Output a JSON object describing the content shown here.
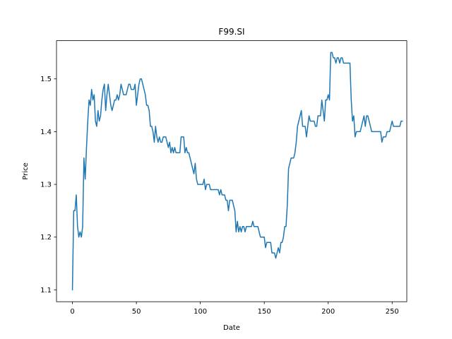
{
  "chart_data": {
    "type": "line",
    "title": "F99.SI",
    "xlabel": "Date",
    "ylabel": "Price",
    "xlim": [
      -12.45,
      261.45
    ],
    "ylim": [
      1.0775,
      1.5725
    ],
    "xticks": [
      0,
      50,
      100,
      150,
      200,
      250
    ],
    "yticks": [
      1.1,
      1.2,
      1.3,
      1.4,
      1.5
    ],
    "xtick_labels": [
      "0",
      "50",
      "100",
      "150",
      "200",
      "250"
    ],
    "ytick_labels": [
      "1.1",
      "1.2",
      "1.3",
      "1.4",
      "1.5"
    ],
    "grid": false,
    "colors": {
      "line": "#1f77b4",
      "axes": "#000000",
      "background": "#ffffff"
    },
    "series": [
      {
        "values": [
          1.1,
          1.25,
          1.25,
          1.28,
          1.22,
          1.2,
          1.21,
          1.2,
          1.22,
          1.35,
          1.31,
          1.37,
          1.42,
          1.46,
          1.45,
          1.48,
          1.46,
          1.47,
          1.42,
          1.41,
          1.44,
          1.42,
          1.43,
          1.46,
          1.48,
          1.49,
          1.44,
          1.47,
          1.49,
          1.47,
          1.45,
          1.44,
          1.45,
          1.46,
          1.46,
          1.47,
          1.46,
          1.47,
          1.49,
          1.48,
          1.47,
          1.47,
          1.47,
          1.48,
          1.49,
          1.49,
          1.48,
          1.48,
          1.48,
          1.49,
          1.45,
          1.47,
          1.49,
          1.5,
          1.5,
          1.49,
          1.48,
          1.47,
          1.45,
          1.45,
          1.44,
          1.41,
          1.41,
          1.4,
          1.38,
          1.41,
          1.39,
          1.38,
          1.39,
          1.38,
          1.38,
          1.39,
          1.39,
          1.39,
          1.38,
          1.37,
          1.38,
          1.36,
          1.37,
          1.36,
          1.37,
          1.36,
          1.36,
          1.36,
          1.36,
          1.39,
          1.39,
          1.39,
          1.36,
          1.37,
          1.36,
          1.36,
          1.35,
          1.34,
          1.33,
          1.32,
          1.34,
          1.31,
          1.3,
          1.3,
          1.3,
          1.3,
          1.3,
          1.31,
          1.29,
          1.3,
          1.3,
          1.3,
          1.29,
          1.29,
          1.29,
          1.29,
          1.29,
          1.29,
          1.29,
          1.28,
          1.29,
          1.28,
          1.28,
          1.28,
          1.27,
          1.27,
          1.25,
          1.27,
          1.27,
          1.27,
          1.26,
          1.25,
          1.21,
          1.23,
          1.21,
          1.22,
          1.21,
          1.22,
          1.22,
          1.21,
          1.22,
          1.22,
          1.22,
          1.22,
          1.22,
          1.23,
          1.22,
          1.22,
          1.22,
          1.22,
          1.21,
          1.2,
          1.2,
          1.2,
          1.2,
          1.18,
          1.19,
          1.19,
          1.19,
          1.19,
          1.17,
          1.17,
          1.17,
          1.16,
          1.17,
          1.18,
          1.17,
          1.19,
          1.19,
          1.2,
          1.22,
          1.22,
          1.26,
          1.33,
          1.34,
          1.35,
          1.35,
          1.35,
          1.36,
          1.38,
          1.41,
          1.42,
          1.43,
          1.44,
          1.41,
          1.41,
          1.41,
          1.39,
          1.41,
          1.43,
          1.42,
          1.42,
          1.42,
          1.42,
          1.41,
          1.41,
          1.43,
          1.43,
          1.43,
          1.46,
          1.44,
          1.42,
          1.46,
          1.46,
          1.47,
          1.46,
          1.55,
          1.55,
          1.54,
          1.54,
          1.53,
          1.54,
          1.54,
          1.53,
          1.54,
          1.54,
          1.53,
          1.53,
          1.53,
          1.53,
          1.53,
          1.53,
          1.46,
          1.42,
          1.43,
          1.39,
          1.4,
          1.4,
          1.4,
          1.4,
          1.41,
          1.42,
          1.43,
          1.41,
          1.43,
          1.43,
          1.42,
          1.41,
          1.4,
          1.4,
          1.4,
          1.4,
          1.4,
          1.4,
          1.4,
          1.4,
          1.38,
          1.39,
          1.39,
          1.39,
          1.4,
          1.4,
          1.4,
          1.41,
          1.42,
          1.41,
          1.41,
          1.41,
          1.41,
          1.41,
          1.41,
          1.42,
          1.42
        ]
      }
    ]
  }
}
